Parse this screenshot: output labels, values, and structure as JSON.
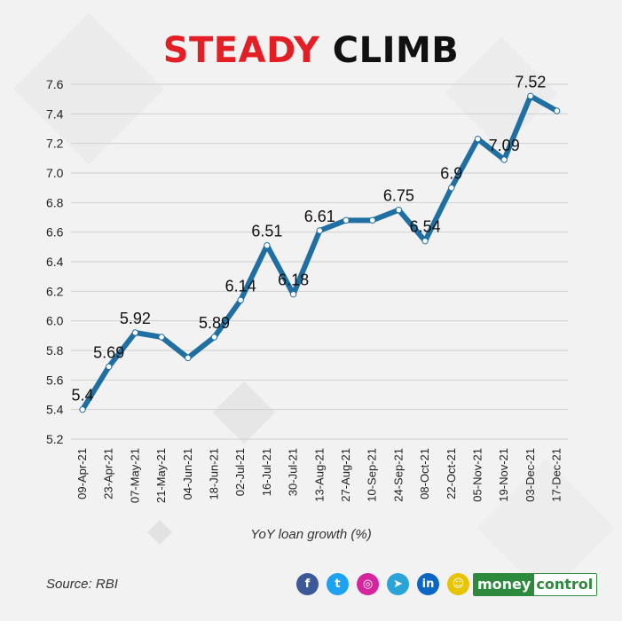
{
  "header": {
    "title_part1": "STEADY",
    "title_part2": "CLIMB"
  },
  "chart_data": {
    "type": "line",
    "xlabel": "YoY loan growth (%)",
    "categories": [
      "09-Apr-21",
      "23-Apr-21",
      "07-May-21",
      "21-May-21",
      "04-Jun-21",
      "18-Jun-21",
      "02-Jul-21",
      "16-Jul-21",
      "30-Jul-21",
      "13-Aug-21",
      "27-Aug-21",
      "10-Sep-21",
      "24-Sep-21",
      "08-Oct-21",
      "22-Oct-21",
      "05-Nov-21",
      "19-Nov-21",
      "03-Dec-21",
      "17-Dec-21"
    ],
    "values": [
      5.4,
      5.69,
      5.92,
      5.89,
      5.75,
      5.89,
      6.14,
      6.51,
      6.18,
      6.61,
      6.68,
      6.68,
      6.75,
      6.54,
      6.9,
      7.23,
      7.09,
      7.52,
      7.42
    ],
    "data_labels": [
      "5.4",
      "5.69",
      "5.92",
      "",
      "",
      "5.89",
      "6.14",
      "6.51",
      "6.18",
      "6.61",
      "",
      "",
      "6.75",
      "6.54",
      "6.9",
      "",
      "7.09",
      "7.52",
      ""
    ],
    "ylim": [
      5.2,
      7.6
    ],
    "yticks": [
      "5.2",
      "5.4",
      "5.6",
      "5.8",
      "6.0",
      "6.2",
      "6.4",
      "6.6",
      "6.8",
      "7.0",
      "7.2",
      "7.4",
      "7.6"
    ],
    "grid": true,
    "line_color": "#1f6fa3"
  },
  "footer": {
    "source": "Source: RBI",
    "brand_part1": "money",
    "brand_part2": "control"
  },
  "social": [
    {
      "name": "facebook-icon",
      "glyph": "f",
      "color": "#3b5998"
    },
    {
      "name": "twitter-icon",
      "glyph": "t",
      "color": "#1da1f2"
    },
    {
      "name": "instagram-icon",
      "glyph": "◎",
      "color": "#d6249f"
    },
    {
      "name": "telegram-icon",
      "glyph": "➤",
      "color": "#2aa3d9"
    },
    {
      "name": "linkedin-icon",
      "glyph": "in",
      "color": "#0a66c2"
    },
    {
      "name": "snapchat-icon",
      "glyph": "☺",
      "color": "#e8c400"
    }
  ]
}
